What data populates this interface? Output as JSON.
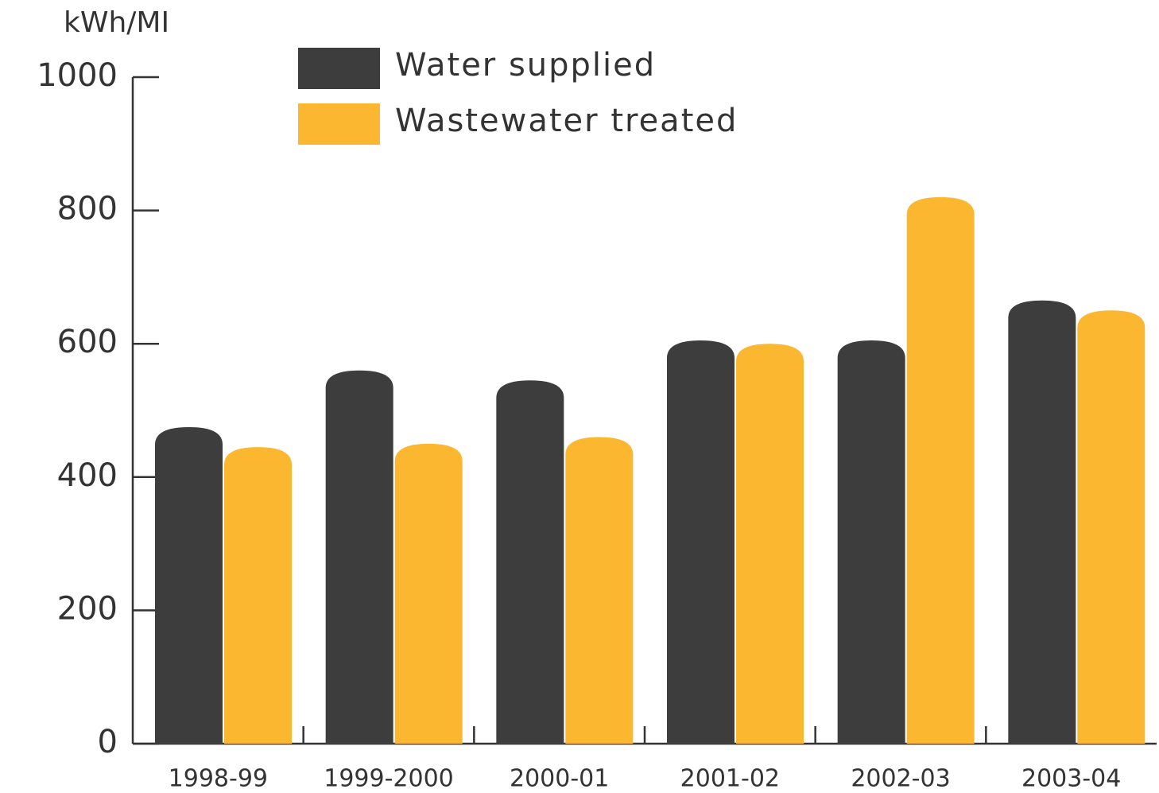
{
  "chart_data": {
    "type": "bar",
    "y_label": "kWh/MI",
    "categories": [
      "1998-99",
      "1999-2000",
      "2000-01",
      "2001-02",
      "2002-03",
      "2003-04"
    ],
    "series": [
      {
        "name": "Water supplied",
        "color": "#3d3d3d",
        "values": [
          475,
          560,
          545,
          605,
          605,
          665
        ]
      },
      {
        "name": "Wastewater treated",
        "color": "#fbb72f",
        "values": [
          445,
          450,
          460,
          600,
          820,
          650
        ]
      }
    ],
    "ylim": [
      0,
      1000
    ],
    "yticks": [
      0,
      200,
      400,
      600,
      800,
      1000
    ],
    "legend": "top"
  }
}
